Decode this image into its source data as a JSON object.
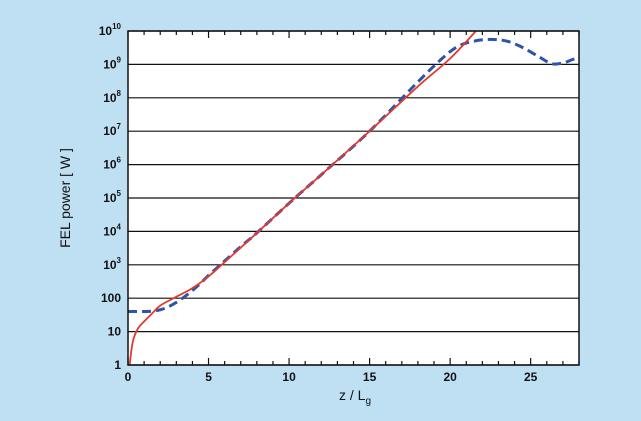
{
  "chart_data": {
    "type": "line",
    "title": "",
    "xlabel": "z / L",
    "xlabel_subscript": "g",
    "ylabel": "FEL power [ W ]",
    "xlim": [
      0,
      28
    ],
    "ylim": [
      1,
      10000000000
    ],
    "y_scale": "log",
    "grid": "horizontal",
    "legend": "none",
    "x_ticks": [
      {
        "value": 0,
        "label": "0"
      },
      {
        "value": 5,
        "label": "5"
      },
      {
        "value": 10,
        "label": "10"
      },
      {
        "value": 15,
        "label": "15"
      },
      {
        "value": 20,
        "label": "20"
      },
      {
        "value": 25,
        "label": "25"
      }
    ],
    "y_ticks": [
      {
        "value": 1,
        "base": "1",
        "exp": ""
      },
      {
        "value": 10,
        "base": "10",
        "exp": ""
      },
      {
        "value": 100,
        "base": "100",
        "exp": ""
      },
      {
        "value": 1000,
        "base": "10",
        "exp": "3"
      },
      {
        "value": 10000,
        "base": "10",
        "exp": "4"
      },
      {
        "value": 100000,
        "base": "10",
        "exp": "5"
      },
      {
        "value": 1000000,
        "base": "10",
        "exp": "6"
      },
      {
        "value": 10000000,
        "base": "10",
        "exp": "7"
      },
      {
        "value": 100000000,
        "base": "10",
        "exp": "8"
      },
      {
        "value": 1000000000,
        "base": "10",
        "exp": "9"
      },
      {
        "value": 10000000000,
        "base": "10",
        "exp": "10"
      }
    ],
    "series": [
      {
        "style": "dashed",
        "color": "#2a55a8",
        "points": [
          [
            0,
            40
          ],
          [
            1,
            40
          ],
          [
            1.5,
            41
          ],
          [
            2,
            45
          ],
          [
            2.5,
            55
          ],
          [
            3,
            75
          ],
          [
            3.5,
            110
          ],
          [
            4,
            170
          ],
          [
            4.5,
            280
          ],
          [
            5,
            480
          ],
          [
            6,
            1300
          ],
          [
            7,
            3500
          ],
          [
            8,
            9000
          ],
          [
            10,
            70000
          ],
          [
            12,
            500000
          ],
          [
            15,
            10000000
          ],
          [
            18,
            300000000
          ],
          [
            19.5,
            1500000000
          ],
          [
            20.5,
            3500000000
          ],
          [
            21.5,
            5000000000
          ],
          [
            22.5,
            5600000000
          ],
          [
            23.5,
            5000000000
          ],
          [
            24.5,
            3200000000
          ],
          [
            25.5,
            1700000000
          ],
          [
            26.3,
            1050000000
          ],
          [
            27,
            1100000000
          ],
          [
            27.6,
            1400000000
          ],
          [
            28,
            1600000000
          ]
        ]
      },
      {
        "style": "solid",
        "color": "#e23a2c",
        "points": [
          [
            0.1,
            1
          ],
          [
            0.3,
            5
          ],
          [
            0.6,
            12
          ],
          [
            1,
            20
          ],
          [
            1.5,
            35
          ],
          [
            2,
            60
          ],
          [
            3,
            110
          ],
          [
            4,
            200
          ],
          [
            5,
            450
          ],
          [
            6,
            1200
          ],
          [
            8,
            9000
          ],
          [
            10,
            70000
          ],
          [
            12,
            500000
          ],
          [
            15,
            10000000
          ],
          [
            18,
            220000000
          ],
          [
            20,
            1500000000
          ],
          [
            21.6,
            10000000000
          ]
        ]
      }
    ]
  }
}
